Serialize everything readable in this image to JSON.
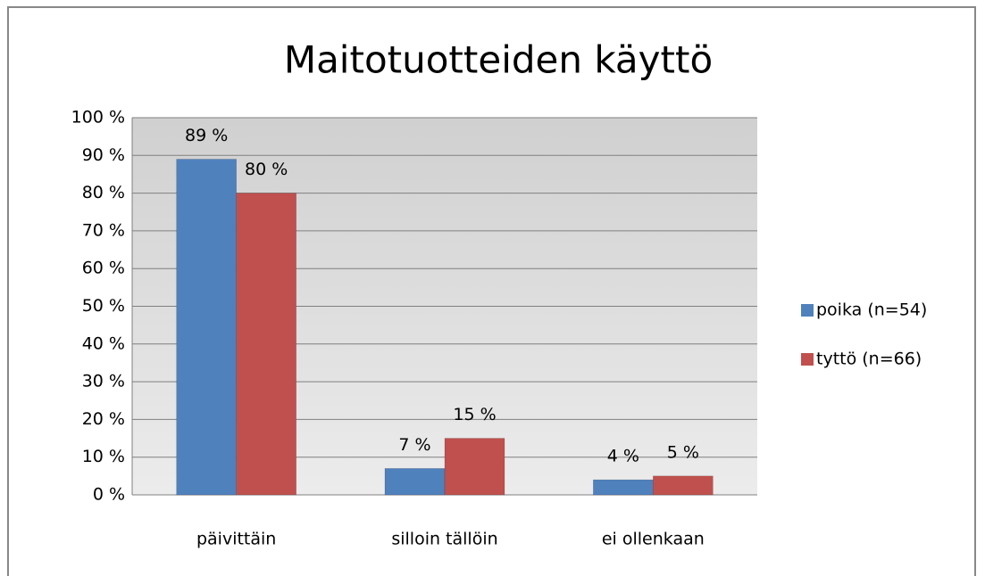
{
  "chart_data": {
    "type": "bar",
    "title": "Maitotuotteiden käyttö",
    "categories": [
      "päivittäin",
      "silloin tällöin",
      "ei ollenkaan"
    ],
    "series": [
      {
        "name": "poika (n=54)",
        "color": "#4f81bd",
        "values": [
          89,
          7,
          4
        ],
        "value_labels": [
          "89 %",
          "7 %",
          "4 %"
        ]
      },
      {
        "name": "tyttö (n=66)",
        "color": "#c0504d",
        "values": [
          80,
          15,
          5
        ],
        "value_labels": [
          "80 %",
          "15 %",
          "5 %"
        ]
      }
    ],
    "ylim": [
      0,
      100
    ],
    "yticks": [
      {
        "value": 0,
        "label": "0 %"
      },
      {
        "value": 10,
        "label": "10 %"
      },
      {
        "value": 20,
        "label": "20 %"
      },
      {
        "value": 30,
        "label": "30 %"
      },
      {
        "value": 40,
        "label": "40 %"
      },
      {
        "value": 50,
        "label": "50 %"
      },
      {
        "value": 60,
        "label": "60 %"
      },
      {
        "value": 70,
        "label": "70 %"
      },
      {
        "value": 80,
        "label": "80 %"
      },
      {
        "value": 90,
        "label": "90 %"
      },
      {
        "value": 100,
        "label": "100 %"
      }
    ],
    "grid": true,
    "legend": "right"
  }
}
